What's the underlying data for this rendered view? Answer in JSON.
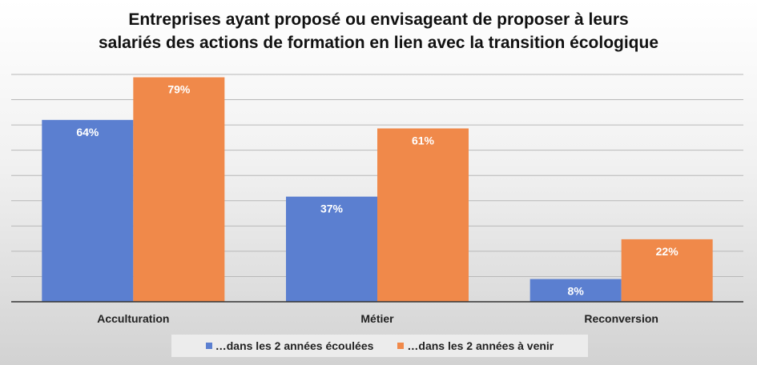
{
  "chart_data": {
    "type": "bar",
    "title_line1": "Entreprises ayant proposé ou envisageant de proposer à leurs",
    "title_line2": "salariés des actions de formation en lien avec la transition écologique",
    "categories": [
      "Acculturation",
      "Métier",
      "Reconversion"
    ],
    "series": [
      {
        "name": "…dans les 2 années écoulées",
        "values": [
          64,
          37,
          8
        ],
        "labels": [
          "64%",
          "37%",
          "8%"
        ],
        "color": "#5b7fd0"
      },
      {
        "name": "…dans les 2 années à venir",
        "values": [
          79,
          61,
          22
        ],
        "labels": [
          "79%",
          "61%",
          "22%"
        ],
        "color": "#f0894a"
      }
    ],
    "ylim": [
      0,
      80
    ],
    "grid": true,
    "xlabel": "",
    "ylabel": "",
    "legend_position": "bottom"
  }
}
